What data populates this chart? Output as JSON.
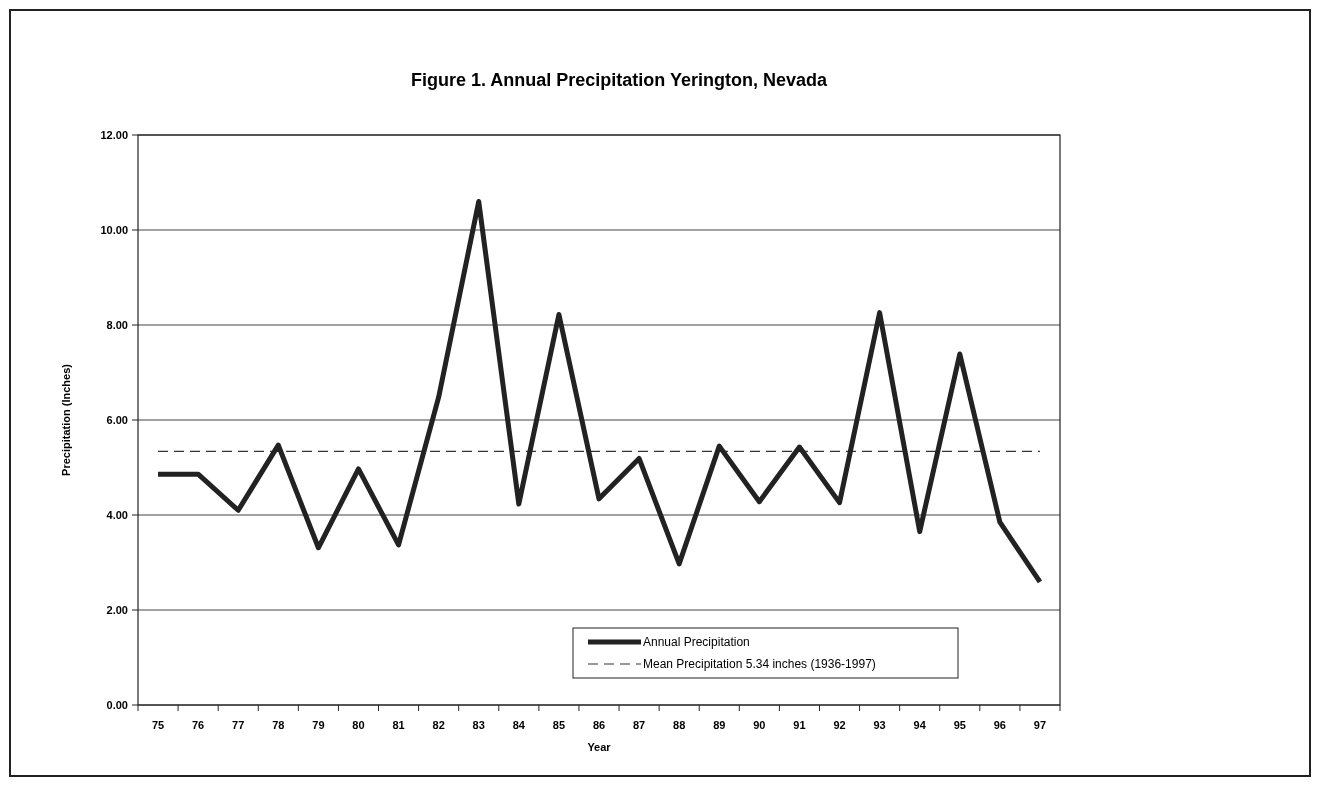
{
  "chart_data": {
    "type": "line",
    "title": "Figure 1. Annual Precipitation Yerington, Nevada",
    "xlabel": "Year",
    "ylabel": "Precipitation (Inches)",
    "categories": [
      "75",
      "76",
      "77",
      "78",
      "79",
      "80",
      "81",
      "82",
      "83",
      "84",
      "85",
      "86",
      "87",
      "88",
      "89",
      "90",
      "91",
      "92",
      "93",
      "94",
      "95",
      "96",
      "97"
    ],
    "series": [
      {
        "name": "Annual Precipitation",
        "color": "#222222",
        "values": [
          4.86,
          4.86,
          4.1,
          5.47,
          3.31,
          4.97,
          3.37,
          6.48,
          10.6,
          4.23,
          8.22,
          4.34,
          5.19,
          2.97,
          5.45,
          4.28,
          5.43,
          4.26,
          8.26,
          3.65,
          7.39,
          3.85,
          2.59
        ]
      }
    ],
    "ref_lines": [
      {
        "axis": "y",
        "value": 5.34,
        "label": "Mean Precipitation 5.34 inches (1936-1997)",
        "color": "#333333",
        "line_style": "dashed"
      }
    ],
    "ylim": [
      0,
      12
    ],
    "yticks": [
      {
        "value": 0,
        "label": "0.00"
      },
      {
        "value": 2,
        "label": "2.00"
      },
      {
        "value": 4,
        "label": "4.00"
      },
      {
        "value": 6,
        "label": "6.00"
      },
      {
        "value": 8,
        "label": "8.00"
      },
      {
        "value": 10,
        "label": "10.00"
      },
      {
        "value": 12,
        "label": "12.00"
      }
    ],
    "grid": "y",
    "legend": "bottom right",
    "marker": "none",
    "line_style": "solid"
  }
}
